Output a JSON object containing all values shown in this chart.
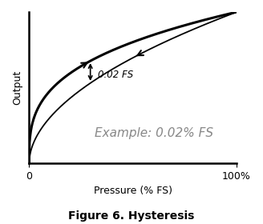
{
  "title": "Figure 6. Hysteresis",
  "xlabel": "Pressure (% FS)",
  "ylabel": "Output",
  "annotation_small": "0.02 FS",
  "annotation_large": "Example: 0.02% FS",
  "line_color": "#000000",
  "background_color": "#ffffff",
  "fig_width": 3.28,
  "fig_height": 2.8,
  "dpi": 100
}
